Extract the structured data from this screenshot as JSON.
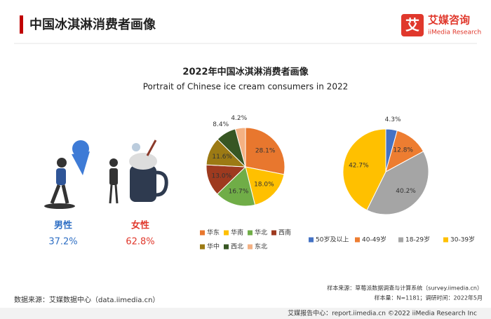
{
  "header": {
    "title": "中国冰淇淋消费者画像",
    "logo_cn": "艾媒咨询",
    "logo_en": "iiMedia Research"
  },
  "chart_title": "2022年中国冰淇淋消费者画像",
  "chart_subtitle": "Portrait of Chinese ice cream consumers in 2022",
  "gender": [
    {
      "label": "男性",
      "value": "37.2%"
    },
    {
      "label": "女性",
      "value": "62.8%"
    }
  ],
  "chart_data": [
    {
      "type": "pie",
      "categories": [
        "华东",
        "华南",
        "华北",
        "西南",
        "华中",
        "西北",
        "东北"
      ],
      "values": [
        28.1,
        18.0,
        16.7,
        13.0,
        11.6,
        8.4,
        4.2
      ],
      "value_labels": [
        "28.1%",
        "18.0%",
        "16.7%",
        "13.0%",
        "11.6%",
        "8.4%",
        "4.2%"
      ],
      "colors": [
        "#e8772e",
        "#ffc000",
        "#70ad47",
        "#9e3a1f",
        "#9c7a14",
        "#375623",
        "#f4b183"
      ]
    },
    {
      "type": "pie",
      "categories": [
        "50岁及以上",
        "40-49岁",
        "18-29岁",
        "30-39岁"
      ],
      "values": [
        4.3,
        12.8,
        40.2,
        42.7
      ],
      "value_labels": [
        "4.3%",
        "12.8%",
        "40.2%",
        "42.7%"
      ],
      "colors": [
        "#4472c4",
        "#ed7d31",
        "#a5a5a5",
        "#ffc000"
      ]
    }
  ],
  "footer": {
    "source": "数据来源：艾媒数据中心（data.iimedia.cn）",
    "sample_source": "样本来源：草莓派数据调查与计算系统（survey.iimedia.cn）",
    "sample_size": "样本量：N=1181；调研时间：2022年5月",
    "report": "艾媒报告中心：report.iimedia.cn  ©2022  iiMedia Research  Inc"
  }
}
